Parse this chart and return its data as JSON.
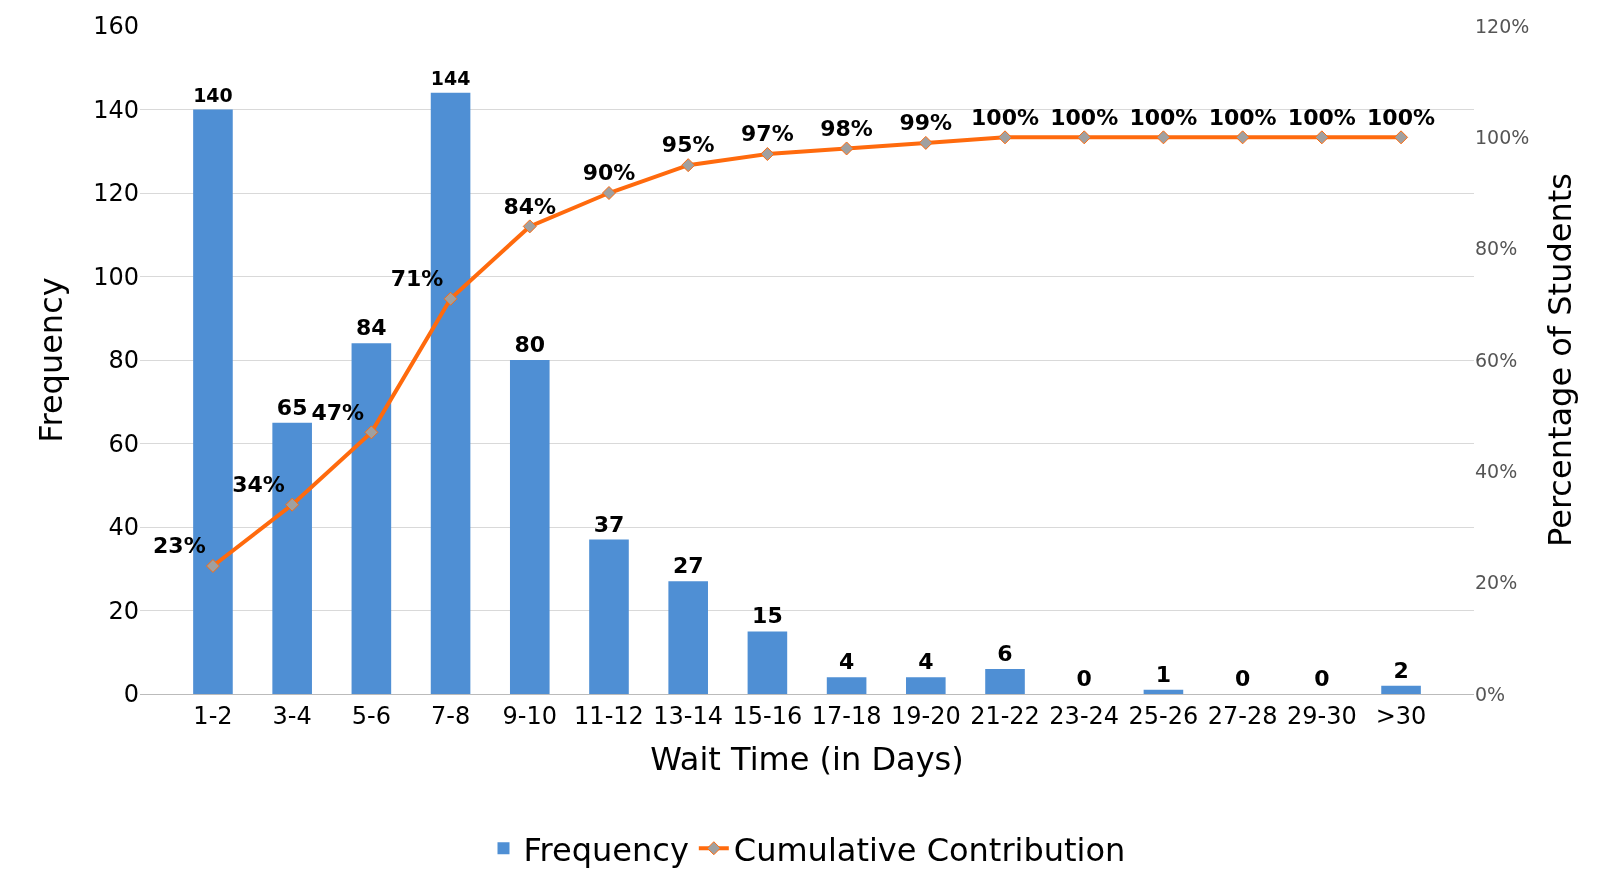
{
  "chart_data": {
    "type": "bar",
    "xlabel": "Wait Time (in Days)",
    "ylabel": "Frequency",
    "y2label": "Percentage of Students",
    "categories": [
      "1-2",
      "3-4",
      "5-6",
      "7-8",
      "9-10",
      "11-12",
      "13-14",
      "15-16",
      "17-18",
      "19-20",
      "21-22",
      "23-24",
      "25-26",
      "27-28",
      "29-30",
      ">30"
    ],
    "series": [
      {
        "name": "Frequency",
        "color": "#4f8fd4",
        "values": [
          140,
          65,
          84,
          144,
          80,
          37,
          27,
          15,
          4,
          4,
          6,
          0,
          1,
          0,
          0,
          2
        ],
        "value_labels": [
          "140",
          "65",
          "84",
          "144",
          "80",
          "37",
          "27",
          "15",
          "4",
          "4",
          "6",
          "0",
          "1",
          "0",
          "0",
          "2"
        ]
      },
      {
        "name": "Cumulative Contribution",
        "type": "line",
        "axis": "y2",
        "color": "#ff6a0d",
        "values": [
          23,
          34,
          47,
          71,
          84,
          90,
          95,
          97,
          98,
          99,
          100,
          100,
          100,
          100,
          100,
          100
        ],
        "value_labels": [
          "23%",
          "34%",
          "47%",
          "71%",
          "84%",
          "90%",
          "95%",
          "97%",
          "98%",
          "99%",
          "100%",
          "100%",
          "100%",
          "100%",
          "100%",
          "100%"
        ]
      }
    ],
    "ylim": [
      0,
      160
    ],
    "yticks": [
      0,
      20,
      40,
      60,
      80,
      100,
      120,
      140,
      160
    ],
    "y2lim": [
      0,
      120
    ],
    "y2ticks": [
      {
        "value": 0,
        "label": "0%"
      },
      {
        "value": 20,
        "label": "20%"
      },
      {
        "value": 40,
        "label": "40%"
      },
      {
        "value": 60,
        "label": "60%"
      },
      {
        "value": 80,
        "label": "80%"
      },
      {
        "value": 100,
        "label": "100%"
      },
      {
        "value": 120,
        "label": "120%"
      }
    ],
    "grid": "y",
    "legend": "bottom",
    "marker": "diamond",
    "line_style": "solid"
  }
}
